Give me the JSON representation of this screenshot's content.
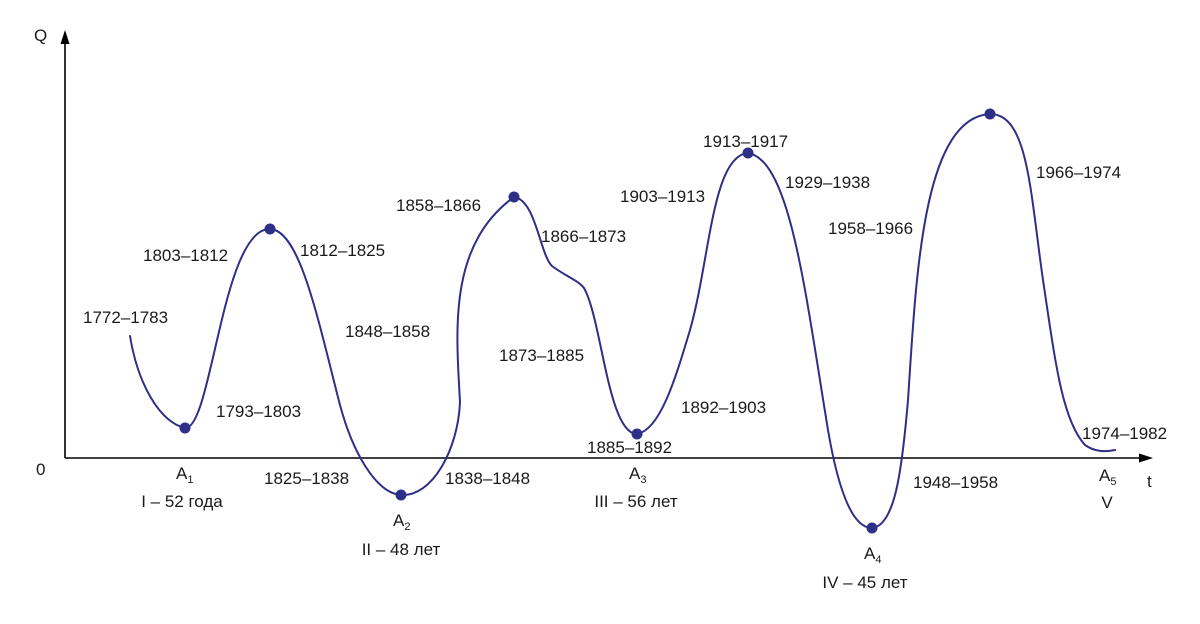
{
  "axes": {
    "y_label": "Q",
    "x_label": "t",
    "origin_label": "0"
  },
  "curve_color": "#2e2f86",
  "period_labels": [
    "1772–1783",
    "1803–1812",
    "1812–1825",
    "1793–1803",
    "1825–1838",
    "1848–1858",
    "1858–1866",
    "1866–1873",
    "1838–1848",
    "1873–1885",
    "1885–1892",
    "1892–1903",
    "1903–1913",
    "1913–1917",
    "1929–1938",
    "1958–1966",
    "1966–1974",
    "1948–1958",
    "1974–1982"
  ],
  "cycles": [
    {
      "point": "A",
      "index": "1",
      "label": "I – 52 года"
    },
    {
      "point": "A",
      "index": "2",
      "label": "II – 48 лет"
    },
    {
      "point": "A",
      "index": "3",
      "label": "III – 56 лет"
    },
    {
      "point": "A",
      "index": "4",
      "label": "IV – 45 лет"
    },
    {
      "point": "A",
      "index": "5",
      "label": "V"
    }
  ]
}
